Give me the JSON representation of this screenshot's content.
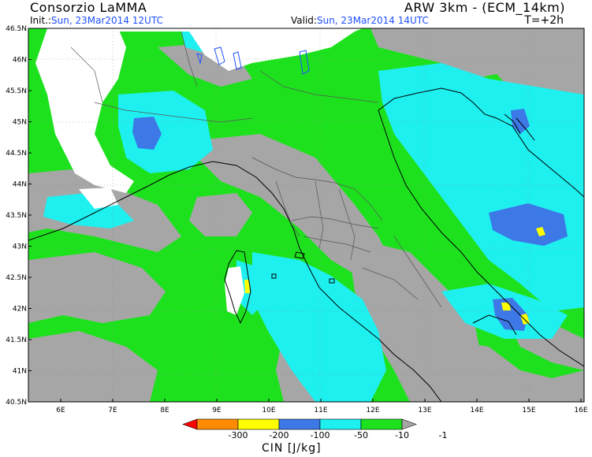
{
  "header": {
    "org": "Consorzio LaMMA",
    "model": "ARW 3km - (ECM_14km)",
    "init_label": "Init.:",
    "init_value": "Sun, 23Mar2014 12UTC",
    "valid_label": "Valid:",
    "valid_value": "Sun, 23Mar2014 14UTC",
    "lead_time": "T=+2h"
  },
  "map": {
    "lat_labels": [
      "46.5N",
      "46N",
      "45.5N",
      "45N",
      "44.5N",
      "44N",
      "43.5N",
      "43N",
      "42.5N",
      "42N",
      "41.5N",
      "41N",
      "40.5N"
    ],
    "lon_labels": [
      "6E",
      "7E",
      "8E",
      "9E",
      "10E",
      "11E",
      "12E",
      "13E",
      "14E",
      "15E",
      "16E"
    ],
    "colors": {
      "land_missing": "#ffffff",
      "gray": "#a6a6a6",
      "green": "#1ee11e",
      "cyan": "#1ef0f0",
      "blue": "#3c78e6",
      "yellow": "#ffff00",
      "coast": "#000000",
      "border": "#555555"
    }
  },
  "colorbar": {
    "title": "CIN [J/kg]",
    "tick_labels": [
      "-300",
      "-200",
      "-100",
      "-50",
      "-10",
      "-1"
    ],
    "bins": [
      {
        "color": "#ff0000"
      },
      {
        "color": "#ff8c00"
      },
      {
        "color": "#ffff00"
      },
      {
        "color": "#3c78e6"
      },
      {
        "color": "#1ef0f0"
      },
      {
        "color": "#1ee11e"
      },
      {
        "color": "#a6a6a6"
      }
    ]
  }
}
